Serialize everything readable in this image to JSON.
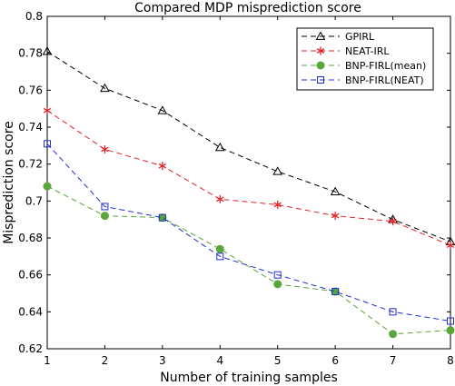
{
  "chart_data": {
    "type": "line",
    "title": "Compared MDP misprediction score",
    "xlabel": "Number of training samples",
    "ylabel": "Misprediction score",
    "x": [
      1,
      2,
      3,
      4,
      5,
      6,
      7,
      8
    ],
    "xlim": [
      1,
      8
    ],
    "ylim": [
      0.62,
      0.8
    ],
    "x_ticks": [
      "1",
      "2",
      "3",
      "4",
      "5",
      "6",
      "7",
      "8"
    ],
    "y_ticks": [
      "0.62",
      "0.64",
      "0.66",
      "0.68",
      "0.7",
      "0.72",
      "0.74",
      "0.76",
      "0.78",
      "0.8"
    ],
    "grid": false,
    "legend_position": "top-right",
    "series": [
      {
        "name": "GPIRL",
        "color": "#000000",
        "marker": "triangle",
        "values": [
          0.781,
          0.761,
          0.749,
          0.729,
          0.716,
          0.705,
          0.69,
          0.678
        ]
      },
      {
        "name": "NEAT-IRL",
        "color": "#e0242a",
        "marker": "asterisk",
        "values": [
          0.749,
          0.728,
          0.719,
          0.701,
          0.698,
          0.692,
          0.689,
          0.676
        ]
      },
      {
        "name": "BNP-FIRL(mean)",
        "color": "#5aa63c",
        "marker": "circle",
        "values": [
          0.708,
          0.692,
          0.691,
          0.674,
          0.655,
          0.651,
          0.628,
          0.63
        ]
      },
      {
        "name": "BNP-FIRL(NEAT)",
        "color": "#1f2fcf",
        "marker": "square",
        "values": [
          0.731,
          0.697,
          0.691,
          0.67,
          0.66,
          0.651,
          0.64,
          0.635
        ]
      }
    ]
  }
}
